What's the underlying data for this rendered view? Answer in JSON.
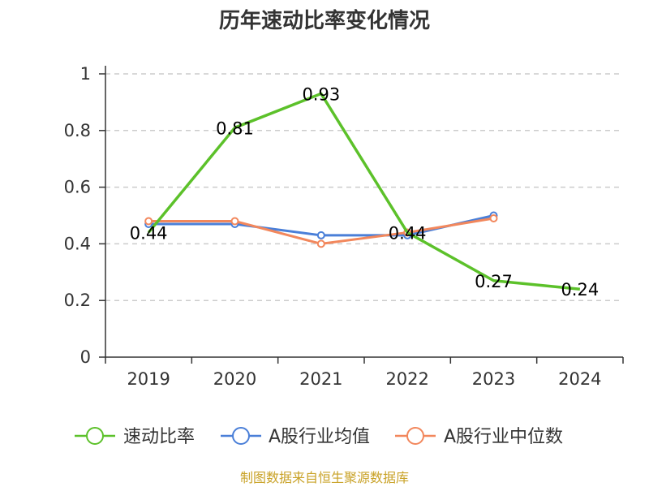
{
  "chart_data": {
    "type": "line",
    "title": "历年速动比率变化情况",
    "categories": [
      "2019",
      "2020",
      "2021",
      "2022",
      "2023",
      "2024"
    ],
    "ylim": [
      0,
      1
    ],
    "yticks": [
      "0",
      "0.2",
      "0.4",
      "0.6",
      "0.8",
      "1"
    ],
    "grid": true,
    "legend_position": "bottom",
    "series": [
      {
        "name": "速动比率",
        "color": "#5cc12a",
        "values": [
          0.44,
          0.81,
          0.93,
          0.44,
          0.27,
          0.24
        ],
        "labels": [
          "0.44",
          "0.81",
          "0.93",
          "0.44",
          "0.27",
          "0.24"
        ]
      },
      {
        "name": "A股行业均值",
        "color": "#4a7fd8",
        "values": [
          0.47,
          0.47,
          0.43,
          0.43,
          0.5,
          null
        ]
      },
      {
        "name": "A股行业中位数",
        "color": "#f2875c",
        "values": [
          0.48,
          0.48,
          0.4,
          0.44,
          0.49,
          null
        ]
      }
    ]
  },
  "source": "制图数据来自恒生聚源数据库"
}
